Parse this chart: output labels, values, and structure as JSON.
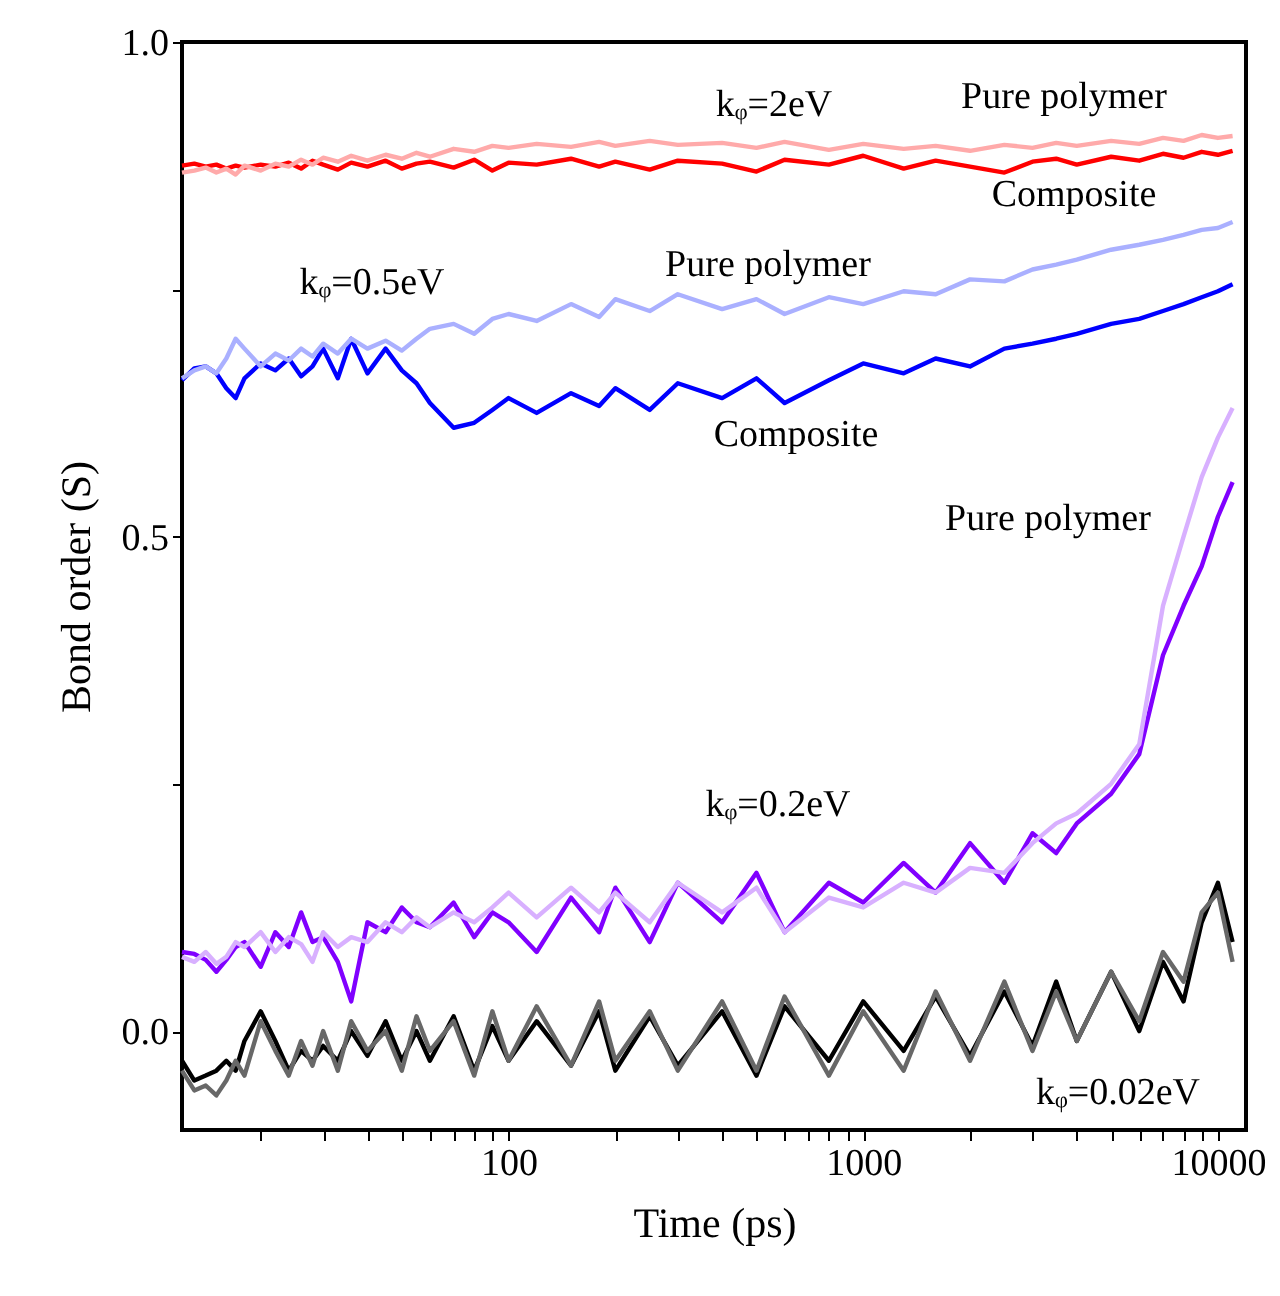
{
  "chart_data": {
    "type": "line",
    "xlabel": "Time (ps)",
    "ylabel": "Bond order (S)",
    "log": "x",
    "xlim": [
      12,
      12000
    ],
    "ylim": [
      -0.1,
      1.0
    ],
    "xticks": [
      {
        "value": 20,
        "label": null
      },
      {
        "value": 30,
        "label": null
      },
      {
        "value": 40,
        "label": null
      },
      {
        "value": 50,
        "label": null
      },
      {
        "value": 60,
        "label": null
      },
      {
        "value": 70,
        "label": null
      },
      {
        "value": 80,
        "label": null
      },
      {
        "value": 90,
        "label": null
      },
      100,
      {
        "value": 200,
        "label": null
      },
      {
        "value": 300,
        "label": null
      },
      {
        "value": 400,
        "label": null
      },
      {
        "value": 500,
        "label": null
      },
      {
        "value": 600,
        "label": null
      },
      {
        "value": 700,
        "label": null
      },
      {
        "value": 800,
        "label": null
      },
      {
        "value": 900,
        "label": null
      },
      1000,
      {
        "value": 2000,
        "label": null
      },
      {
        "value": 3000,
        "label": null
      },
      {
        "value": 4000,
        "label": null
      },
      {
        "value": 5000,
        "label": null
      },
      {
        "value": 6000,
        "label": null
      },
      {
        "value": 7000,
        "label": null
      },
      {
        "value": 8000,
        "label": null
      },
      {
        "value": 9000,
        "label": null
      },
      10000
    ],
    "yticks": [
      {
        "value": 0,
        "label": "0.0"
      },
      {
        "value": 0.25,
        "label": null
      },
      {
        "value": 0.5,
        "label": "0.5"
      },
      {
        "value": 0.75,
        "label": null
      },
      {
        "value": 1.0,
        "label": "1.0"
      }
    ],
    "x": [
      12,
      13,
      14,
      15,
      16,
      17,
      18,
      20,
      22,
      24,
      26,
      28,
      30,
      33,
      36,
      40,
      45,
      50,
      55,
      60,
      70,
      80,
      90,
      100,
      120,
      150,
      180,
      200,
      250,
      300,
      400,
      500,
      600,
      800,
      1000,
      1300,
      1600,
      2000,
      2500,
      3000,
      3500,
      4000,
      5000,
      6000,
      7000,
      8000,
      9000,
      10000,
      11000
    ],
    "series": [
      {
        "color": "#ff0000",
        "values": [
          0.875,
          0.877,
          0.874,
          0.876,
          0.872,
          0.875,
          0.873,
          0.876,
          0.874,
          0.878,
          0.872,
          0.88,
          0.876,
          0.871,
          0.878,
          0.874,
          0.88,
          0.872,
          0.877,
          0.879,
          0.873,
          0.881,
          0.87,
          0.878,
          0.876,
          0.882,
          0.874,
          0.879,
          0.871,
          0.88,
          0.877,
          0.869,
          0.881,
          0.876,
          0.885,
          0.872,
          0.88,
          0.874,
          0.868,
          0.879,
          0.882,
          0.876,
          0.884,
          0.88,
          0.887,
          0.883,
          0.889,
          0.886,
          0.89
        ]
      },
      {
        "color": "#ffaaaa",
        "values": [
          0.868,
          0.87,
          0.873,
          0.868,
          0.872,
          0.866,
          0.875,
          0.87,
          0.877,
          0.874,
          0.881,
          0.876,
          0.883,
          0.879,
          0.885,
          0.88,
          0.886,
          0.882,
          0.888,
          0.884,
          0.892,
          0.889,
          0.895,
          0.893,
          0.897,
          0.894,
          0.899,
          0.895,
          0.9,
          0.896,
          0.898,
          0.893,
          0.899,
          0.891,
          0.897,
          0.892,
          0.895,
          0.89,
          0.896,
          0.893,
          0.898,
          0.895,
          0.9,
          0.897,
          0.903,
          0.9,
          0.906,
          0.903,
          0.905
        ]
      },
      {
        "color": "#0000ff",
        "values": [
          0.658,
          0.67,
          0.672,
          0.665,
          0.65,
          0.64,
          0.66,
          0.675,
          0.668,
          0.68,
          0.662,
          0.672,
          0.69,
          0.66,
          0.7,
          0.665,
          0.69,
          0.668,
          0.655,
          0.635,
          0.61,
          0.615,
          0.628,
          0.64,
          0.625,
          0.645,
          0.632,
          0.65,
          0.628,
          0.655,
          0.64,
          0.66,
          0.635,
          0.658,
          0.675,
          0.665,
          0.68,
          0.672,
          0.69,
          0.695,
          0.7,
          0.705,
          0.715,
          0.72,
          0.728,
          0.735,
          0.742,
          0.748,
          0.755
        ]
      },
      {
        "color": "#aab0ff",
        "values": [
          0.66,
          0.668,
          0.672,
          0.665,
          0.68,
          0.7,
          0.69,
          0.672,
          0.685,
          0.678,
          0.69,
          0.682,
          0.695,
          0.685,
          0.7,
          0.69,
          0.698,
          0.688,
          0.7,
          0.71,
          0.715,
          0.705,
          0.72,
          0.725,
          0.718,
          0.735,
          0.722,
          0.74,
          0.728,
          0.745,
          0.73,
          0.74,
          0.725,
          0.742,
          0.735,
          0.748,
          0.745,
          0.76,
          0.758,
          0.77,
          0.775,
          0.78,
          0.79,
          0.795,
          0.8,
          0.805,
          0.81,
          0.812,
          0.818
        ]
      },
      {
        "color": "#8000ff",
        "values": [
          0.08,
          0.078,
          0.072,
          0.06,
          0.072,
          0.085,
          0.09,
          0.065,
          0.1,
          0.085,
          0.12,
          0.09,
          0.095,
          0.07,
          0.03,
          0.11,
          0.1,
          0.125,
          0.11,
          0.105,
          0.13,
          0.095,
          0.12,
          0.11,
          0.08,
          0.135,
          0.1,
          0.145,
          0.09,
          0.15,
          0.11,
          0.16,
          0.1,
          0.15,
          0.13,
          0.17,
          0.14,
          0.19,
          0.15,
          0.2,
          0.18,
          0.21,
          0.24,
          0.28,
          0.38,
          0.43,
          0.47,
          0.52,
          0.555
        ]
      },
      {
        "color": "#d8b0ff",
        "values": [
          0.075,
          0.07,
          0.08,
          0.068,
          0.075,
          0.09,
          0.085,
          0.1,
          0.08,
          0.095,
          0.088,
          0.07,
          0.1,
          0.085,
          0.095,
          0.09,
          0.11,
          0.1,
          0.115,
          0.105,
          0.12,
          0.11,
          0.125,
          0.14,
          0.115,
          0.145,
          0.12,
          0.14,
          0.11,
          0.15,
          0.12,
          0.145,
          0.1,
          0.135,
          0.125,
          0.15,
          0.14,
          0.165,
          0.16,
          0.19,
          0.21,
          0.22,
          0.25,
          0.29,
          0.43,
          0.5,
          0.56,
          0.6,
          0.63
        ]
      },
      {
        "color": "#000000",
        "values": [
          -0.03,
          -0.05,
          -0.045,
          -0.04,
          -0.03,
          -0.04,
          -0.01,
          0.02,
          -0.01,
          -0.04,
          -0.02,
          -0.03,
          -0.015,
          -0.03,
          0.0,
          -0.025,
          0.01,
          -0.03,
          0.0,
          -0.03,
          0.015,
          -0.04,
          0.005,
          -0.03,
          0.01,
          -0.035,
          0.02,
          -0.04,
          0.015,
          -0.035,
          0.02,
          -0.045,
          0.025,
          -0.03,
          0.03,
          -0.02,
          0.035,
          -0.025,
          0.04,
          -0.015,
          0.05,
          -0.01,
          0.06,
          0.0,
          0.07,
          0.03,
          0.11,
          0.15,
          0.09
        ]
      },
      {
        "color": "#686868",
        "values": [
          -0.04,
          -0.06,
          -0.055,
          -0.065,
          -0.05,
          -0.03,
          -0.045,
          0.01,
          -0.02,
          -0.045,
          -0.01,
          -0.035,
          0.0,
          -0.04,
          0.01,
          -0.02,
          0.0,
          -0.04,
          0.015,
          -0.02,
          0.01,
          -0.045,
          0.02,
          -0.03,
          0.025,
          -0.035,
          0.03,
          -0.03,
          0.02,
          -0.04,
          0.03,
          -0.04,
          0.035,
          -0.045,
          0.02,
          -0.04,
          0.04,
          -0.03,
          0.05,
          -0.02,
          0.04,
          -0.01,
          0.06,
          0.01,
          0.08,
          0.05,
          0.12,
          0.14,
          0.07
        ]
      }
    ],
    "annotations": [
      "kᵩ=2eV",
      "Pure polymer",
      "Composite",
      "kᵩ=0.5eV",
      "Pure polymer",
      "Composite",
      "Pure polymer",
      "kᵩ=0.2eV",
      "kᵩ=0.02eV"
    ]
  }
}
